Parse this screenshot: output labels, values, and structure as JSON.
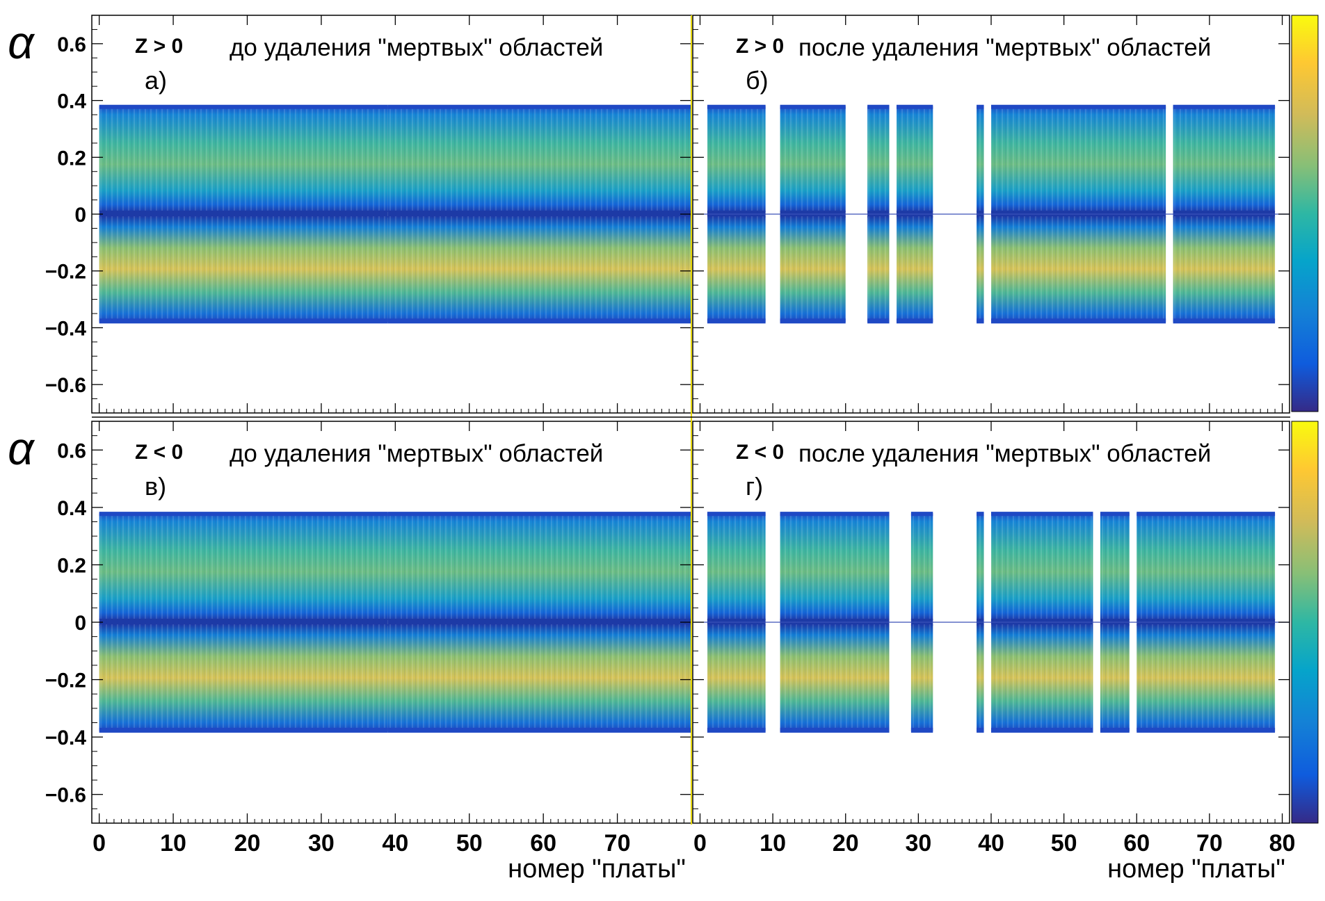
{
  "figure": {
    "x_axis_label": "номер \"платы\"",
    "y_axis_symbol": "α",
    "colors": {
      "background": "#ffffff",
      "frame": "#000000",
      "divider": "#e6d600",
      "zero_line": "#3a50b8",
      "palette": [
        "#352a87",
        "#0f5cdd",
        "#1481d6",
        "#06a4ca",
        "#2eb7a4",
        "#87bf77",
        "#d1bb59",
        "#fec832",
        "#f9fb0e"
      ]
    }
  },
  "colorbar": {
    "description": ""
  },
  "chart_data": [
    {
      "type": "heatmap",
      "panel_id": "a",
      "corner_label": "Z > 0",
      "title": "до удаления \"мертвых\" областей",
      "letter": "а)",
      "xlim": [
        -1,
        80
      ],
      "ylim": [
        -0.7,
        0.7
      ],
      "x_ticks": [
        "0",
        "10",
        "20",
        "30",
        "40",
        "50",
        "60",
        "70"
      ],
      "y_ticks": [
        "0.6",
        "0.4",
        "0.2",
        "0",
        "−0.2",
        "−0.4",
        "−0.6"
      ],
      "y_tick_values": [
        0.6,
        0.4,
        0.2,
        0,
        -0.2,
        -0.4,
        -0.6
      ],
      "x_tick_values": [
        0,
        10,
        20,
        30,
        40,
        50,
        60,
        70
      ],
      "alpha_range": [
        -0.38,
        0.38
      ],
      "occupied_ranges": [
        [
          0,
          39
        ],
        [
          39,
          80
        ]
      ],
      "dead_ranges": [],
      "zero_line": false
    },
    {
      "type": "heatmap",
      "panel_id": "b",
      "corner_label": "Z > 0",
      "title": "после удаления \"мертвых\" областей",
      "letter": "б)",
      "xlim": [
        -1,
        81
      ],
      "ylim": [
        -0.7,
        0.7
      ],
      "x_ticks": [
        "0",
        "10",
        "20",
        "30",
        "40",
        "50",
        "60",
        "70",
        "80"
      ],
      "x_tick_values": [
        0,
        10,
        20,
        30,
        40,
        50,
        60,
        70,
        80
      ],
      "y_ticks": [],
      "y_tick_values": [
        0.6,
        0.4,
        0.2,
        0,
        -0.2,
        -0.4,
        -0.6
      ],
      "alpha_range": [
        -0.38,
        0.38
      ],
      "occupied_ranges": [
        [
          1,
          9
        ],
        [
          11,
          20
        ],
        [
          23,
          26
        ],
        [
          27,
          32
        ],
        [
          38,
          39
        ],
        [
          40,
          64
        ],
        [
          65,
          79
        ]
      ],
      "dead_ranges": [],
      "zero_line": true
    },
    {
      "type": "heatmap",
      "panel_id": "v",
      "corner_label": "Z < 0",
      "title": "до удаления \"мертвых\" областей",
      "letter": "в)",
      "xlim": [
        -1,
        80
      ],
      "ylim": [
        -0.7,
        0.7
      ],
      "x_ticks": [
        "0",
        "10",
        "20",
        "30",
        "40",
        "50",
        "60",
        "70"
      ],
      "x_tick_values": [
        0,
        10,
        20,
        30,
        40,
        50,
        60,
        70
      ],
      "y_ticks": [
        "0.6",
        "0.4",
        "0.2",
        "0",
        "−0.2",
        "−0.4",
        "−0.6"
      ],
      "y_tick_values": [
        0.6,
        0.4,
        0.2,
        0,
        -0.2,
        -0.4,
        -0.6
      ],
      "alpha_range": [
        -0.38,
        0.38
      ],
      "occupied_ranges": [
        [
          0,
          39
        ],
        [
          39,
          80
        ]
      ],
      "dead_ranges": [],
      "zero_line": false
    },
    {
      "type": "heatmap",
      "panel_id": "g",
      "corner_label": "Z < 0",
      "title": "после удаления \"мертвых\" областей",
      "letter": "г)",
      "xlim": [
        -1,
        81
      ],
      "ylim": [
        -0.7,
        0.7
      ],
      "x_ticks": [
        "0",
        "10",
        "20",
        "30",
        "40",
        "50",
        "60",
        "70",
        "80"
      ],
      "x_tick_values": [
        0,
        10,
        20,
        30,
        40,
        50,
        60,
        70,
        80
      ],
      "y_ticks": [],
      "y_tick_values": [
        0.6,
        0.4,
        0.2,
        0,
        -0.2,
        -0.4,
        -0.6
      ],
      "alpha_range": [
        -0.38,
        0.38
      ],
      "occupied_ranges": [
        [
          1,
          9
        ],
        [
          11,
          26
        ],
        [
          29,
          32
        ],
        [
          38,
          39
        ],
        [
          40,
          54
        ],
        [
          55,
          59
        ],
        [
          60,
          79
        ]
      ],
      "dead_ranges": [],
      "zero_line": true
    }
  ]
}
